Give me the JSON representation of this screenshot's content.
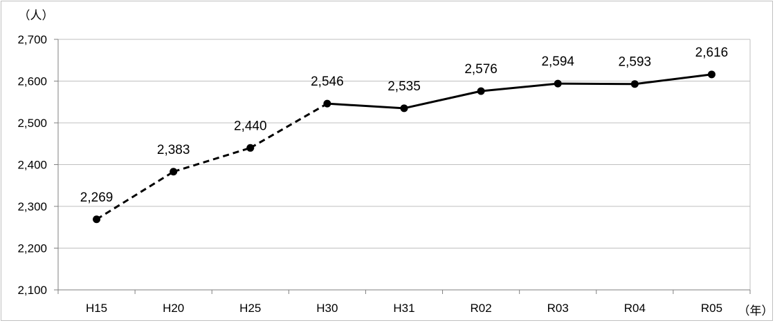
{
  "chart_data": {
    "type": "line",
    "title": "",
    "y_unit_label": "（人）",
    "x_unit_label": "（年）",
    "categories": [
      "H15",
      "H20",
      "H25",
      "H30",
      "H31",
      "R02",
      "R03",
      "R04",
      "R05"
    ],
    "values": [
      2269,
      2383,
      2440,
      2546,
      2535,
      2576,
      2594,
      2593,
      2616
    ],
    "data_labels": [
      "2,269",
      "2,383",
      "2,440",
      "2,546",
      "2,535",
      "2,576",
      "2,594",
      "2,593",
      "2,616"
    ],
    "ylim": [
      2100,
      2700
    ],
    "yticks": [
      2100,
      2200,
      2300,
      2400,
      2500,
      2600,
      2700
    ],
    "ytick_labels": [
      "2,100",
      "2,200",
      "2,300",
      "2,400",
      "2,500",
      "2,600",
      "2,700"
    ],
    "line_style_segments": {
      "dashed_through_index": 3,
      "note_styles": [
        "dashed",
        "solid"
      ]
    },
    "grid": true,
    "colors": {
      "line": "#000000",
      "marker": "#000000",
      "grid": "#bfbfbf",
      "axis": "#7f7f7f"
    }
  }
}
